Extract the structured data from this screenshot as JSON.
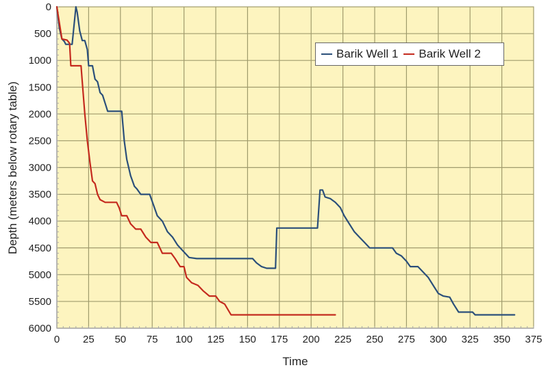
{
  "chart_data": {
    "type": "line",
    "title": "",
    "xlabel": "Time",
    "ylabel": "Depth (meters below rotary table)",
    "xlim": [
      0,
      375
    ],
    "ylim": [
      0,
      6000
    ],
    "y_inverted": true,
    "grid": true,
    "legend_position": "upper-right",
    "x_ticks": [
      0,
      25,
      50,
      75,
      100,
      125,
      150,
      175,
      200,
      225,
      250,
      275,
      300,
      325,
      350,
      375
    ],
    "y_ticks": [
      0,
      500,
      1000,
      1500,
      2000,
      2500,
      3000,
      3500,
      4000,
      4500,
      5000,
      5500,
      6000
    ],
    "colors": {
      "plot_background": "#fdf4bf",
      "grid": "#9f9b6c",
      "axis": "#a8a8a8"
    },
    "series": [
      {
        "name": "Barik Well 1",
        "color": "#2b4f7a",
        "points": [
          [
            0,
            0
          ],
          [
            2,
            400
          ],
          [
            4,
            600
          ],
          [
            6,
            650
          ],
          [
            7,
            700
          ],
          [
            12,
            700
          ],
          [
            15,
            0
          ],
          [
            16,
            100
          ],
          [
            18,
            450
          ],
          [
            20,
            630
          ],
          [
            22,
            630
          ],
          [
            24,
            800
          ],
          [
            25,
            1100
          ],
          [
            28,
            1100
          ],
          [
            30,
            1350
          ],
          [
            32,
            1400
          ],
          [
            34,
            1600
          ],
          [
            36,
            1650
          ],
          [
            38,
            1800
          ],
          [
            40,
            1950
          ],
          [
            51,
            1950
          ],
          [
            53,
            2500
          ],
          [
            55,
            2850
          ],
          [
            58,
            3150
          ],
          [
            61,
            3350
          ],
          [
            63,
            3400
          ],
          [
            66,
            3500
          ],
          [
            73,
            3500
          ],
          [
            76,
            3700
          ],
          [
            79,
            3900
          ],
          [
            83,
            4000
          ],
          [
            87,
            4200
          ],
          [
            91,
            4300
          ],
          [
            95,
            4450
          ],
          [
            99,
            4550
          ],
          [
            104,
            4680
          ],
          [
            110,
            4700
          ],
          [
            154,
            4700
          ],
          [
            157,
            4780
          ],
          [
            161,
            4850
          ],
          [
            165,
            4880
          ],
          [
            172,
            4880
          ],
          [
            173,
            4130
          ],
          [
            205,
            4130
          ],
          [
            207,
            3420
          ],
          [
            209,
            3420
          ],
          [
            211,
            3550
          ],
          [
            215,
            3580
          ],
          [
            219,
            3650
          ],
          [
            223,
            3750
          ],
          [
            226,
            3900
          ],
          [
            230,
            4050
          ],
          [
            234,
            4200
          ],
          [
            238,
            4300
          ],
          [
            242,
            4400
          ],
          [
            246,
            4500
          ],
          [
            264,
            4500
          ],
          [
            267,
            4600
          ],
          [
            271,
            4650
          ],
          [
            275,
            4750
          ],
          [
            278,
            4850
          ],
          [
            284,
            4850
          ],
          [
            288,
            4950
          ],
          [
            292,
            5050
          ],
          [
            296,
            5200
          ],
          [
            300,
            5350
          ],
          [
            304,
            5400
          ],
          [
            309,
            5420
          ],
          [
            312,
            5550
          ],
          [
            316,
            5700
          ],
          [
            327,
            5700
          ],
          [
            329,
            5750
          ],
          [
            360,
            5750
          ]
        ]
      },
      {
        "name": "Barik Well 2",
        "color": "#c42a1e",
        "points": [
          [
            0,
            0
          ],
          [
            2,
            300
          ],
          [
            4,
            600
          ],
          [
            8,
            620
          ],
          [
            10,
            680
          ],
          [
            11,
            1100
          ],
          [
            19,
            1100
          ],
          [
            20,
            1400
          ],
          [
            22,
            2000
          ],
          [
            24,
            2500
          ],
          [
            26,
            2900
          ],
          [
            28,
            3250
          ],
          [
            30,
            3300
          ],
          [
            32,
            3500
          ],
          [
            34,
            3600
          ],
          [
            38,
            3650
          ],
          [
            47,
            3650
          ],
          [
            49,
            3750
          ],
          [
            51,
            3900
          ],
          [
            55,
            3900
          ],
          [
            58,
            4050
          ],
          [
            62,
            4150
          ],
          [
            66,
            4150
          ],
          [
            70,
            4300
          ],
          [
            74,
            4400
          ],
          [
            79,
            4400
          ],
          [
            83,
            4600
          ],
          [
            90,
            4600
          ],
          [
            93,
            4700
          ],
          [
            97,
            4850
          ],
          [
            100,
            4850
          ],
          [
            102,
            5050
          ],
          [
            106,
            5150
          ],
          [
            111,
            5200
          ],
          [
            115,
            5300
          ],
          [
            120,
            5400
          ],
          [
            125,
            5400
          ],
          [
            128,
            5500
          ],
          [
            132,
            5550
          ],
          [
            137,
            5750
          ],
          [
            219,
            5750
          ]
        ]
      }
    ]
  }
}
